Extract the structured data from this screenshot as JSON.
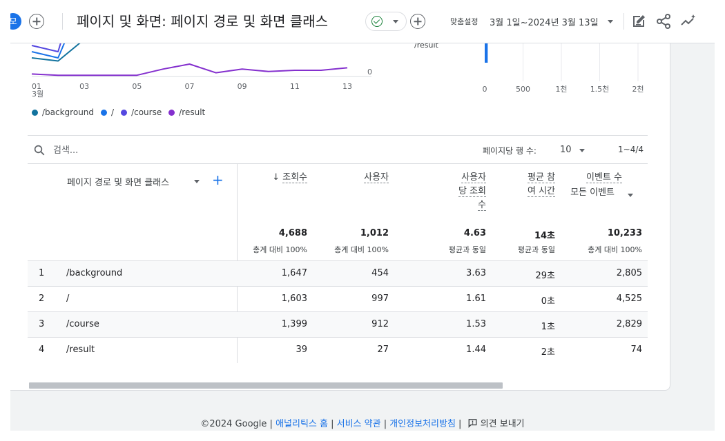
{
  "header": {
    "chip_text": "모",
    "title": "페이지 및 화면: 페이지 경로 및 화면 클래스",
    "date_label": "맞춤설정",
    "date_range": "3월 1일~2024년 3월 13일"
  },
  "chart_data": [
    {
      "type": "line",
      "x": [
        1,
        2,
        3,
        4,
        5,
        6,
        7,
        8,
        9,
        10,
        11,
        12,
        13
      ],
      "x_tick_labels": [
        "01",
        "03",
        "05",
        "07",
        "09",
        "11",
        "13"
      ],
      "x_sublabel": "3월",
      "y_tick_labels": [
        "0"
      ],
      "series": [
        {
          "name": "/background",
          "color": "#12739e",
          "values": [
            30,
            25,
            60,
            500,
            null,
            null,
            null,
            null,
            null,
            null,
            null,
            null,
            null
          ]
        },
        {
          "name": "/",
          "color": "#1a73e8",
          "values": [
            40,
            30,
            130,
            520,
            null,
            null,
            null,
            null,
            null,
            null,
            null,
            null,
            null
          ]
        },
        {
          "name": "/course",
          "color": "#5548e0",
          "values": [
            50,
            40,
            180,
            540,
            null,
            null,
            null,
            null,
            null,
            null,
            null,
            null,
            null
          ]
        },
        {
          "name": "/result",
          "color": "#8430ce",
          "values": [
            4,
            2,
            2,
            2,
            2,
            12,
            20,
            6,
            12,
            8,
            10,
            10,
            14
          ]
        }
      ]
    },
    {
      "type": "bar",
      "orientation": "horizontal",
      "categories": [
        "/result"
      ],
      "values": [
        39
      ],
      "x_tick_labels": [
        "0",
        "500",
        "1천",
        "1.5천",
        "2천"
      ],
      "xlim": [
        0,
        2000
      ]
    }
  ],
  "table": {
    "search_placeholder": "검색...",
    "rows_per_page_label": "페이지당 행 수:",
    "rows_per_page": "10",
    "page_count": "1~4/4",
    "dimension_header": "페이지 경로 및 화면 클래스",
    "columns": [
      {
        "line1": "조회수",
        "total": "4,688",
        "sub": "총계 대비 100%"
      },
      {
        "line1": "사용자",
        "total": "1,012",
        "sub": "총계 대비 100%"
      },
      {
        "line1": "사용자",
        "line2": "당 조회",
        "line3": "수",
        "total": "4.63",
        "sub": "평균과 동일"
      },
      {
        "line1": "평균 참",
        "line2": "여 시간",
        "total": "14초",
        "sub": "평균과 동일"
      },
      {
        "line1": "이벤트 수",
        "line2": "모든 이벤트",
        "total": "10,233",
        "sub": "총계 대비 100%"
      }
    ],
    "rows": [
      {
        "idx": "1",
        "path": "/background",
        "views": "1,647",
        "users": "454",
        "vpu": "3.63",
        "eng": "29초",
        "events": "2,805"
      },
      {
        "idx": "2",
        "path": "/",
        "views": "1,603",
        "users": "997",
        "vpu": "1.61",
        "eng": "0초",
        "events": "4,525"
      },
      {
        "idx": "3",
        "path": "/course",
        "views": "1,399",
        "users": "912",
        "vpu": "1.53",
        "eng": "1초",
        "events": "2,829"
      },
      {
        "idx": "4",
        "path": "/result",
        "views": "39",
        "users": "27",
        "vpu": "1.44",
        "eng": "2초",
        "events": "74"
      }
    ]
  },
  "footer": {
    "copyright": "©2024 Google",
    "links": [
      "애널리틱스 홈",
      "서비스 약관",
      "개인정보처리방침"
    ],
    "feedback": "의견 보내기"
  }
}
